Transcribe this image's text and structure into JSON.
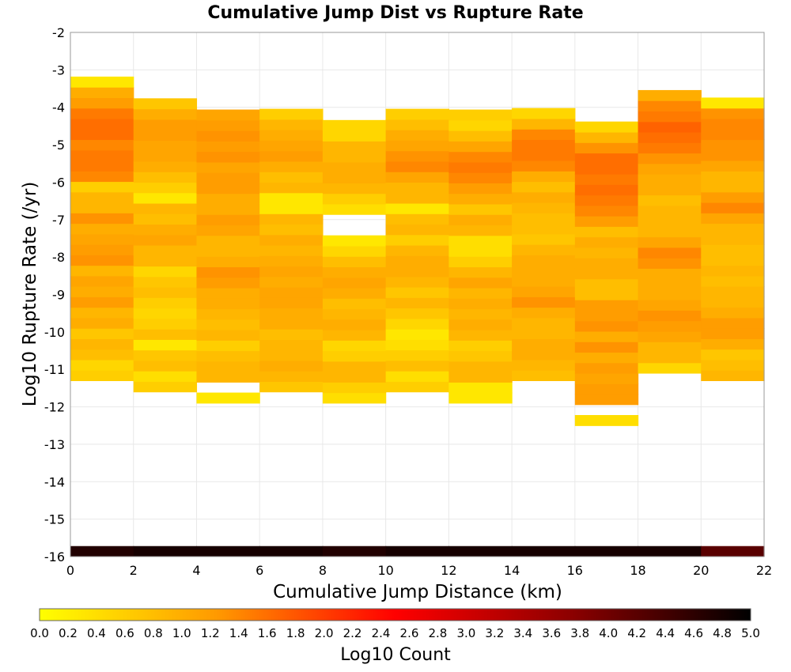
{
  "chart_data": {
    "type": "heatmap",
    "title": "Cumulative Jump Dist vs Rupture Rate",
    "xlabel": "Cumulative Jump Distance (km)",
    "ylabel": "Log10 Rupture Rate (/yr)",
    "xlim": [
      0,
      22
    ],
    "ylim": [
      -16,
      -2
    ],
    "x_ticks": [
      "0",
      "2",
      "4",
      "6",
      "8",
      "10",
      "12",
      "14",
      "16",
      "18",
      "20",
      "22"
    ],
    "y_ticks": [
      "-2",
      "-3",
      "-4",
      "-5",
      "-6",
      "-7",
      "-8",
      "-9",
      "-10",
      "-11",
      "-12",
      "-13",
      "-14",
      "-15",
      "-16"
    ],
    "grid": true,
    "x_bin_edges": [
      0,
      2,
      4,
      6,
      8,
      10,
      12,
      14,
      16,
      18,
      20,
      22
    ],
    "y_bin_width": 0.28,
    "bin_row_y_start": [
      -11.3,
      -11.6,
      -11.9,
      -11.6,
      -11.9,
      -11.6,
      -11.9,
      -11.3,
      -12.5,
      -11.1,
      -11.3
    ],
    "bin_values_log10_count": [
      [
        0.6,
        0.5,
        0.8,
        0.9,
        0.7,
        1.0,
        0.9,
        1.2,
        1.0,
        1.1,
        0.9,
        1.3,
        1.2,
        1.1,
        1.0,
        1.3,
        0.9,
        0.9,
        0.6,
        1.4,
        1.5,
        1.5,
        1.4,
        1.6,
        1.6,
        1.5,
        1.2,
        1.0,
        0.3
      ],
      [
        0.6,
        0.4,
        0.8,
        0.7,
        0.3,
        0.8,
        0.6,
        0.5,
        0.6,
        0.8,
        0.7,
        0.5,
        0.9,
        0.9,
        1.1,
        1.0,
        0.8,
        0.9,
        0.3,
        0.6,
        0.8,
        1.0,
        1.1,
        1.1,
        1.2,
        1.2,
        1.0,
        0.7
      ],
      [
        0.3,
        null,
        0.9,
        0.9,
        0.8,
        0.6,
        0.9,
        0.8,
        0.9,
        1.0,
        1.0,
        1.2,
        1.3,
        1.0,
        0.9,
        0.9,
        1.1,
        1.2,
        1.0,
        1.0,
        1.2,
        1.2,
        1.1,
        1.3,
        1.2,
        1.3,
        1.2,
        1.1
      ],
      [
        0.7,
        0.9,
        1.0,
        0.9,
        0.9,
        0.8,
        1.0,
        1.0,
        1.1,
        1.1,
        1.0,
        1.1,
        1.0,
        0.9,
        1.0,
        0.8,
        0.9,
        0.3,
        0.3,
        0.9,
        0.8,
        1.0,
        1.2,
        1.1,
        1.0,
        0.9,
        0.6
      ],
      [
        0.4,
        0.6,
        0.9,
        0.9,
        0.6,
        0.5,
        0.9,
        1.0,
        0.9,
        0.8,
        1.0,
        1.1,
        1.0,
        0.8,
        0.5,
        0.3,
        null,
        null,
        0.4,
        0.6,
        0.9,
        1.0,
        1.0,
        0.9,
        0.9,
        0.5,
        0.5
      ],
      [
        0.6,
        0.4,
        0.8,
        0.6,
        0.4,
        0.3,
        0.5,
        0.7,
        0.9,
        0.7,
        0.9,
        1.0,
        1.0,
        0.9,
        0.6,
        0.9,
        0.8,
        0.3,
        0.9,
        0.9,
        1.1,
        1.4,
        1.3,
        1.1,
        1.0,
        0.8,
        0.6
      ],
      [
        0.3,
        0.3,
        0.9,
        0.9,
        0.7,
        0.6,
        0.9,
        1.0,
        0.9,
        1.0,
        0.9,
        1.1,
        0.9,
        0.6,
        0.4,
        0.4,
        0.9,
        1.0,
        0.7,
        1.0,
        1.2,
        1.4,
        1.5,
        1.4,
        1.1,
        0.8,
        0.5,
        0.6
      ],
      [
        0.8,
        0.9,
        1.0,
        1.0,
        0.9,
        0.9,
        1.0,
        1.3,
        1.1,
        1.0,
        1.0,
        1.0,
        0.9,
        0.7,
        0.8,
        0.8,
        0.9,
        1.0,
        0.8,
        1.0,
        1.4,
        1.5,
        1.5,
        1.4,
        0.9,
        0.5
      ],
      [
        0.4,
        null,
        1.2,
        1.2,
        1.1,
        1.2,
        1.0,
        1.3,
        1.0,
        1.3,
        1.2,
        1.2,
        0.8,
        0.8,
        1.0,
        1.0,
        0.9,
        1.0,
        0.8,
        1.2,
        1.4,
        1.5,
        1.6,
        1.5,
        1.6,
        1.6,
        1.3,
        0.9,
        0.5
      ],
      [
        0.5,
        0.9,
        0.9,
        1.1,
        1.2,
        1.3,
        1.1,
        1.0,
        1.0,
        1.0,
        1.3,
        1.4,
        1.1,
        0.9,
        0.9,
        0.9,
        0.8,
        1.0,
        1.0,
        1.1,
        1.3,
        1.5,
        1.6,
        1.7,
        1.5,
        1.4,
        1.0
      ],
      [
        0.9,
        0.8,
        0.7,
        1.0,
        1.2,
        1.2,
        1.0,
        0.9,
        0.9,
        0.8,
        0.9,
        0.8,
        0.8,
        0.9,
        0.9,
        1.1,
        1.4,
        1.2,
        0.9,
        0.9,
        1.1,
        1.3,
        1.3,
        1.4,
        1.4,
        1.3,
        0.3
      ]
    ],
    "bottom_row_value_log10_count": [
      4.7,
      4.8,
      4.8,
      4.8,
      4.7,
      4.8,
      4.8,
      4.8,
      4.8,
      4.8,
      4.2
    ],
    "colorbar": {
      "label": "Log10 Count",
      "range": [
        0,
        5
      ],
      "ticks": [
        "0.0",
        "0.2",
        "0.4",
        "0.6",
        "0.8",
        "1.0",
        "1.2",
        "1.4",
        "1.6",
        "1.8",
        "2.0",
        "2.2",
        "2.4",
        "2.6",
        "2.8",
        "3.0",
        "3.2",
        "3.4",
        "3.6",
        "3.8",
        "4.0",
        "4.2",
        "4.4",
        "4.6",
        "4.8",
        "5.0"
      ],
      "colors": [
        "#ffff00",
        "#ff9900",
        "#ff0000",
        "#8b0000",
        "#000000"
      ]
    }
  }
}
